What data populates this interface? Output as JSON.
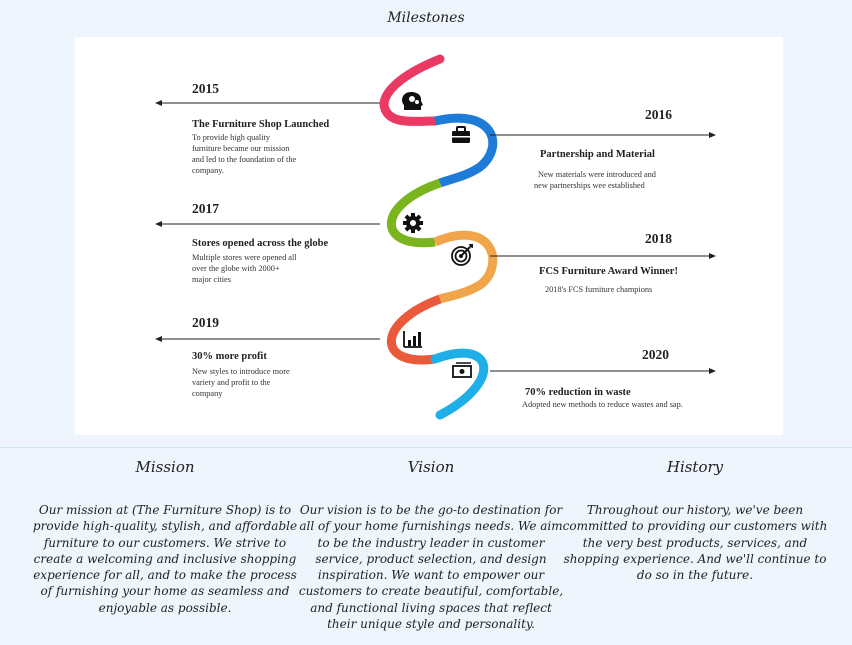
{
  "page_title": "Milestones",
  "milestones": [
    {
      "year": "2015",
      "title": "The Furniture Shop Launched",
      "desc": [
        "To provide high quality",
        "furniture became our mission",
        "and led to the foundation of the",
        "company."
      ],
      "icon": "head-gears-icon",
      "color": "#ea3a64"
    },
    {
      "year": "2016",
      "title": "Partnership and Material",
      "desc": [
        "New materials were introduced and",
        "new partnerships wee established"
      ],
      "icon": "briefcase-icon",
      "color": "#1e7bd8"
    },
    {
      "year": "2017",
      "title": "Stores opened across the globe",
      "desc": [
        "Multiple stores were opened all",
        "over the globe with 2000+",
        "major cities"
      ],
      "icon": "gear-icon",
      "color": "#7bb51d"
    },
    {
      "year": "2018",
      "title": "FCS Furniture Award Winner!",
      "desc": [
        "2018's FCS furniture champions"
      ],
      "icon": "target-icon",
      "color": "#f0a54a"
    },
    {
      "year": "2019",
      "title": "30% more profit",
      "desc": [
        "New styles to introduce more",
        "variety and profit to the",
        "company"
      ],
      "icon": "bar-chart-icon",
      "color": "#ea5a3a"
    },
    {
      "year": "2020",
      "title": "70% reduction in waste",
      "desc": [
        "Adopted new methods to reduce wastes and sap."
      ],
      "icon": "money-icon",
      "color": "#1eaee8"
    }
  ],
  "sections": [
    {
      "heading": "Mission",
      "text": "Our mission at (The Furniture Shop) is to provide high-quality, stylish, and affordable furniture to our customers. We strive to create a welcoming and inclusive shopping experience for all, and to make the process of furnishing your home as seamless and enjoyable as possible."
    },
    {
      "heading": "Vision",
      "text": "Our vision is to be the go-to destination for all of your home furnishings needs. We aim to be the industry leader in customer service, product selection, and design inspiration. We want to empower our customers to create beautiful, comfortable, and functional living spaces that reflect their unique style and personality."
    },
    {
      "heading": "History",
      "text": "Throughout our history, we've been committed to providing our customers with the very best products, services, and shopping experience. And we'll continue to do so in the future."
    }
  ]
}
